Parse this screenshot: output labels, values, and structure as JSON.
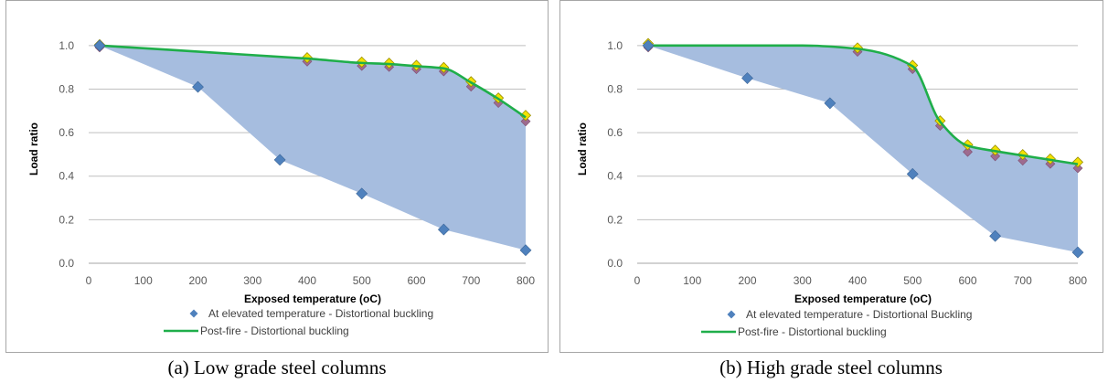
{
  "chart_data": [
    {
      "type": "line",
      "caption": "(a) Low grade steel columns",
      "xlabel": "Exposed temperature (oC)",
      "ylabel": "Load ratio",
      "xlim": [
        0,
        800
      ],
      "ylim": [
        0,
        1.1
      ],
      "xticks": [
        0,
        100,
        200,
        300,
        400,
        500,
        600,
        700,
        800
      ],
      "yticks": [
        0.0,
        0.2,
        0.4,
        0.6,
        0.8,
        1.0
      ],
      "grid": "horizontal",
      "shaded_band": true,
      "series": [
        {
          "name": "At elevated temperature - Distortional buckling",
          "marker": "diamond",
          "color": "#4f81bd",
          "x": [
            20,
            200,
            350,
            500,
            650,
            800
          ],
          "y": [
            1.0,
            0.81,
            0.475,
            0.32,
            0.155,
            0.06
          ]
        },
        {
          "name": "Post-fire - Distortional buckling",
          "marker": "line",
          "color": "#1fae4a",
          "x": [
            20,
            400,
            500,
            550,
            600,
            650,
            700,
            750,
            800
          ],
          "y": [
            1.0,
            0.94,
            0.92,
            0.915,
            0.905,
            0.895,
            0.83,
            0.755,
            0.67
          ]
        }
      ],
      "extra_markers": {
        "yellow": [
          [
            20,
            1.0
          ],
          [
            400,
            0.94
          ],
          [
            500,
            0.92
          ],
          [
            550,
            0.915
          ],
          [
            600,
            0.905
          ],
          [
            650,
            0.895
          ],
          [
            700,
            0.83
          ],
          [
            750,
            0.755
          ],
          [
            800,
            0.675
          ]
        ],
        "mauve": [
          [
            20,
            1.0
          ],
          [
            400,
            0.935
          ],
          [
            500,
            0.915
          ],
          [
            550,
            0.91
          ],
          [
            600,
            0.9
          ],
          [
            650,
            0.89
          ],
          [
            700,
            0.82
          ],
          [
            750,
            0.745
          ],
          [
            800,
            0.66
          ]
        ]
      }
    },
    {
      "type": "line",
      "caption": "(b) High grade steel columns",
      "xlabel": "Exposed temperature (oC)",
      "ylabel": "Load ratio",
      "xlim": [
        0,
        800
      ],
      "ylim": [
        0,
        1.1
      ],
      "xticks": [
        0,
        100,
        200,
        300,
        400,
        500,
        600,
        700,
        800
      ],
      "yticks": [
        0.0,
        0.2,
        0.4,
        0.6,
        0.8,
        1.0
      ],
      "grid": "horizontal",
      "shaded_band": true,
      "series": [
        {
          "name": "At elevated temperature - Distortional Buckling",
          "marker": "diamond",
          "color": "#4f81bd",
          "x": [
            20,
            200,
            350,
            500,
            650,
            800
          ],
          "y": [
            1.0,
            0.85,
            0.735,
            0.41,
            0.125,
            0.05
          ]
        },
        {
          "name": "Post-fire - Distortional buckling",
          "marker": "line",
          "color": "#1fae4a",
          "x": [
            20,
            300,
            400,
            500,
            550,
            600,
            650,
            700,
            750,
            800
          ],
          "y": [
            1.0,
            1.0,
            0.985,
            0.905,
            0.65,
            0.54,
            0.515,
            0.495,
            0.475,
            0.455
          ]
        }
      ],
      "extra_markers": {
        "yellow": [
          [
            20,
            1.005
          ],
          [
            400,
            0.985
          ],
          [
            500,
            0.905
          ],
          [
            550,
            0.65
          ],
          [
            600,
            0.54
          ],
          [
            650,
            0.515
          ],
          [
            700,
            0.495
          ],
          [
            750,
            0.475
          ],
          [
            800,
            0.46
          ]
        ],
        "mauve": [
          [
            20,
            1.0
          ],
          [
            400,
            0.98
          ],
          [
            500,
            0.9
          ],
          [
            550,
            0.64
          ],
          [
            600,
            0.52
          ],
          [
            650,
            0.5
          ],
          [
            700,
            0.48
          ],
          [
            750,
            0.465
          ],
          [
            800,
            0.445
          ]
        ]
      }
    }
  ]
}
